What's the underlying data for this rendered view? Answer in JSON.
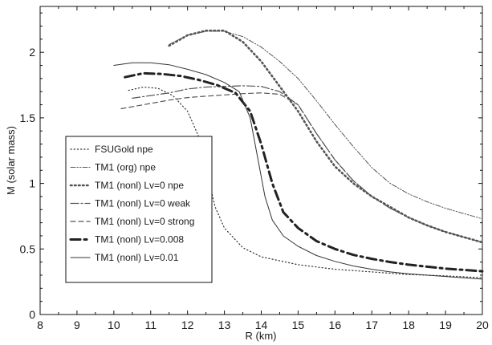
{
  "chart_data": {
    "type": "line",
    "title": "",
    "xlabel": "R (km)",
    "ylabel": "M (solar mass)",
    "xlim": [
      8,
      20
    ],
    "ylim": [
      0,
      2.35
    ],
    "xticks": [
      "8",
      "9",
      "10",
      "11",
      "12",
      "13",
      "14",
      "15",
      "16",
      "17",
      "18",
      "19",
      "20"
    ],
    "yticks": [
      "0",
      "0.5",
      "1",
      "1.5",
      "2"
    ],
    "grid": false,
    "legend_position": "center-left",
    "series": [
      {
        "name": "FSUGold npe",
        "style": "dotted-thin",
        "color": "#333333",
        "points": [
          [
            10.4,
            1.71
          ],
          [
            10.8,
            1.735
          ],
          [
            11.2,
            1.725
          ],
          [
            11.6,
            1.67
          ],
          [
            12.0,
            1.55
          ],
          [
            12.3,
            1.36
          ],
          [
            12.55,
            1.05
          ],
          [
            12.75,
            0.82
          ],
          [
            13.0,
            0.66
          ],
          [
            13.5,
            0.51
          ],
          [
            14.0,
            0.44
          ],
          [
            15.0,
            0.38
          ],
          [
            16.0,
            0.345
          ],
          [
            17.0,
            0.325
          ],
          [
            18.0,
            0.305
          ],
          [
            19.0,
            0.295
          ],
          [
            20.0,
            0.28
          ]
        ]
      },
      {
        "name": "TM1 (org) npe",
        "style": "dash-dot-dot",
        "color": "#555555",
        "points": [
          [
            11.5,
            2.06
          ],
          [
            12.0,
            2.13
          ],
          [
            12.5,
            2.16
          ],
          [
            13.0,
            2.16
          ],
          [
            13.5,
            2.12
          ],
          [
            14.0,
            2.04
          ],
          [
            14.5,
            1.93
          ],
          [
            15.0,
            1.8
          ],
          [
            15.5,
            1.63
          ],
          [
            16.0,
            1.45
          ],
          [
            16.5,
            1.28
          ],
          [
            17.0,
            1.12
          ],
          [
            17.5,
            1.0
          ],
          [
            18.0,
            0.92
          ],
          [
            18.5,
            0.86
          ],
          [
            19.0,
            0.81
          ],
          [
            19.5,
            0.77
          ],
          [
            20.0,
            0.73
          ]
        ]
      },
      {
        "name": "TM1 (nonl) Lv=0 npe",
        "style": "dotted-thick",
        "color": "#555555",
        "points": [
          [
            11.5,
            2.05
          ],
          [
            12.0,
            2.13
          ],
          [
            12.5,
            2.165
          ],
          [
            13.0,
            2.165
          ],
          [
            13.5,
            2.08
          ],
          [
            14.0,
            1.93
          ],
          [
            14.5,
            1.74
          ],
          [
            15.0,
            1.55
          ],
          [
            15.5,
            1.32
          ],
          [
            16.0,
            1.13
          ],
          [
            16.5,
            1.0
          ],
          [
            17.0,
            0.9
          ],
          [
            17.5,
            0.82
          ],
          [
            18.0,
            0.74
          ],
          [
            18.5,
            0.68
          ],
          [
            19.0,
            0.63
          ],
          [
            19.5,
            0.59
          ],
          [
            20.0,
            0.55
          ]
        ]
      },
      {
        "name": "TM1 (nonl) Lv=0 weak",
        "style": "long-dash-dot",
        "color": "#555555",
        "points": [
          [
            10.5,
            1.65
          ],
          [
            11.0,
            1.67
          ],
          [
            11.5,
            1.69
          ],
          [
            12.0,
            1.72
          ],
          [
            12.5,
            1.735
          ],
          [
            13.0,
            1.74
          ],
          [
            13.5,
            1.745
          ],
          [
            14.0,
            1.74
          ],
          [
            14.5,
            1.7
          ],
          [
            15.0,
            1.6
          ],
          [
            15.5,
            1.38
          ],
          [
            16.0,
            1.18
          ],
          [
            16.5,
            1.02
          ],
          [
            17.0,
            0.9
          ],
          [
            17.5,
            0.81
          ],
          [
            18.0,
            0.74
          ],
          [
            18.5,
            0.68
          ],
          [
            19.0,
            0.63
          ],
          [
            19.5,
            0.59
          ],
          [
            20.0,
            0.55
          ]
        ]
      },
      {
        "name": "TM1 (nonl) Lv=0 strong",
        "style": "dashed",
        "color": "#555555",
        "points": [
          [
            10.2,
            1.57
          ],
          [
            11.0,
            1.61
          ],
          [
            11.5,
            1.635
          ],
          [
            12.0,
            1.655
          ],
          [
            12.5,
            1.665
          ],
          [
            13.0,
            1.675
          ],
          [
            13.5,
            1.685
          ],
          [
            14.0,
            1.69
          ],
          [
            14.5,
            1.68
          ],
          [
            15.0,
            1.6
          ],
          [
            15.5,
            1.38
          ],
          [
            16.0,
            1.18
          ],
          [
            16.5,
            1.02
          ],
          [
            17.0,
            0.9
          ],
          [
            17.5,
            0.81
          ],
          [
            18.0,
            0.74
          ],
          [
            18.5,
            0.68
          ],
          [
            19.0,
            0.63
          ],
          [
            19.5,
            0.59
          ],
          [
            20.0,
            0.55
          ]
        ]
      },
      {
        "name": "TM1 (nonl) Lv=0.008",
        "style": "bold-dash-dot",
        "color": "#222222",
        "points": [
          [
            10.3,
            1.81
          ],
          [
            10.8,
            1.84
          ],
          [
            11.3,
            1.835
          ],
          [
            11.8,
            1.82
          ],
          [
            12.3,
            1.79
          ],
          [
            12.8,
            1.75
          ],
          [
            13.3,
            1.69
          ],
          [
            13.7,
            1.55
          ],
          [
            14.0,
            1.3
          ],
          [
            14.3,
            1.0
          ],
          [
            14.6,
            0.78
          ],
          [
            15.0,
            0.66
          ],
          [
            15.5,
            0.56
          ],
          [
            16.0,
            0.5
          ],
          [
            16.5,
            0.455
          ],
          [
            17.0,
            0.425
          ],
          [
            17.5,
            0.4
          ],
          [
            18.0,
            0.38
          ],
          [
            19.0,
            0.35
          ],
          [
            20.0,
            0.33
          ]
        ]
      },
      {
        "name": "TM1 (nonl) Lv=0.01",
        "style": "solid",
        "color": "#333333",
        "points": [
          [
            10.0,
            1.9
          ],
          [
            10.5,
            1.92
          ],
          [
            11.0,
            1.92
          ],
          [
            11.5,
            1.905
          ],
          [
            12.0,
            1.87
          ],
          [
            12.5,
            1.83
          ],
          [
            13.0,
            1.77
          ],
          [
            13.4,
            1.7
          ],
          [
            13.7,
            1.5
          ],
          [
            13.9,
            1.2
          ],
          [
            14.1,
            0.9
          ],
          [
            14.3,
            0.72
          ],
          [
            14.6,
            0.6
          ],
          [
            15.0,
            0.52
          ],
          [
            15.5,
            0.45
          ],
          [
            16.0,
            0.405
          ],
          [
            16.5,
            0.37
          ],
          [
            17.0,
            0.345
          ],
          [
            17.5,
            0.325
          ],
          [
            18.0,
            0.31
          ],
          [
            19.0,
            0.29
          ],
          [
            20.0,
            0.27
          ]
        ]
      }
    ]
  }
}
